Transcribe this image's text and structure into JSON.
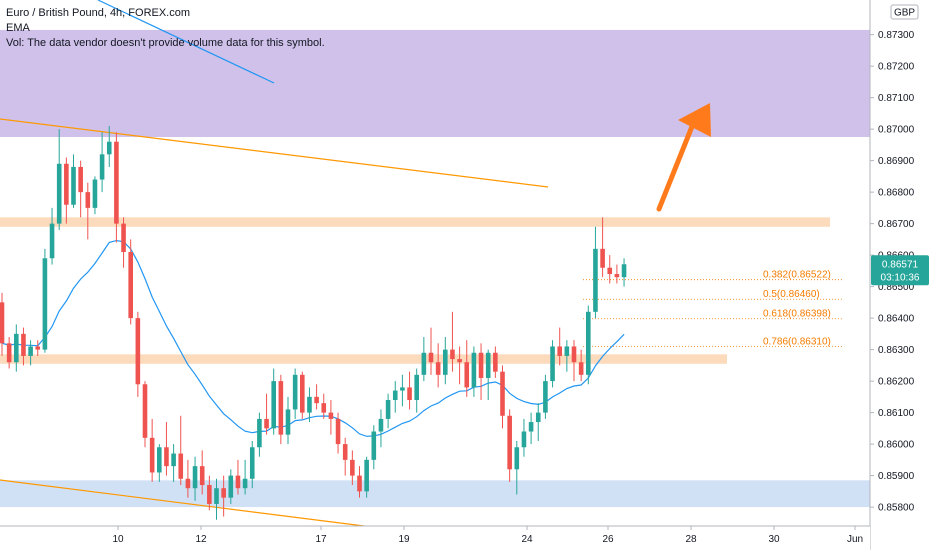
{
  "legend": {
    "symbol_line": "Euro / British Pound, 4h, FOREX.com",
    "ema_label": "EMA",
    "vol_line": "Vol: The data vendor doesn't provide volume data for this symbol."
  },
  "currency": "GBP",
  "price_badge": {
    "price": "0.86571",
    "countdown": "03:10:36",
    "color": "#26a69a"
  },
  "chart_data": {
    "type": "candlestick",
    "symbol": "Euro / British Pound",
    "interval": "4h",
    "source": "FOREX.com",
    "ylim": [
      0.8574,
      0.8741
    ],
    "y_ticks": [
      "0.87300",
      "0.87200",
      "0.87100",
      "0.87000",
      "0.86900",
      "0.86800",
      "0.86700",
      "0.86600",
      "0.86500",
      "0.86400",
      "0.86300",
      "0.86200",
      "0.86100",
      "0.86000",
      "0.85900",
      "0.85800"
    ],
    "x_ticks": [
      "10",
      "12",
      "17",
      "19",
      "24",
      "26",
      "28",
      "30",
      "Jun"
    ],
    "colors": {
      "up": "#26a69a",
      "down": "#ef5350",
      "ema": "#2196f3"
    },
    "zones": [
      {
        "name": "resistance-zone-purple",
        "y_top": 0.87315,
        "y_bottom": 0.86975,
        "color": "#c7b6e6"
      },
      {
        "name": "resistance-zone-orange",
        "y_top": 0.8672,
        "y_bottom": 0.8669,
        "color": "#fbd4b0"
      },
      {
        "name": "support-zone-orange",
        "y_top": 0.86285,
        "y_bottom": 0.86255,
        "color": "#fbd4b0"
      },
      {
        "name": "support-zone-blue",
        "y_top": 0.85885,
        "y_bottom": 0.858,
        "color": "#c8dcf4"
      }
    ],
    "fibonacci": [
      {
        "label": "0.382(0.86522)",
        "value": 0.86522
      },
      {
        "label": "0.5(0.86460)",
        "value": 0.8646
      },
      {
        "label": "0.618(0.86398)",
        "value": 0.86398
      },
      {
        "label": "0.786(0.86310)",
        "value": 0.8631
      }
    ],
    "candles": [
      [
        0.8645,
        0.8648,
        0.8628,
        0.8632
      ],
      [
        0.8632,
        0.8634,
        0.8624,
        0.8626
      ],
      [
        0.8626,
        0.8638,
        0.8623,
        0.8635
      ],
      [
        0.8635,
        0.8637,
        0.8625,
        0.8628
      ],
      [
        0.8628,
        0.8633,
        0.8625,
        0.8631
      ],
      [
        0.8631,
        0.8633,
        0.8628,
        0.863
      ],
      [
        0.863,
        0.8662,
        0.8629,
        0.8659
      ],
      [
        0.8659,
        0.8675,
        0.8657,
        0.867
      ],
      [
        0.867,
        0.87,
        0.8668,
        0.8689
      ],
      [
        0.8689,
        0.8691,
        0.867,
        0.8676
      ],
      [
        0.8676,
        0.8692,
        0.8675,
        0.8688
      ],
      [
        0.8688,
        0.869,
        0.8672,
        0.868
      ],
      [
        0.868,
        0.8683,
        0.8665,
        0.8675
      ],
      [
        0.8675,
        0.8685,
        0.8673,
        0.8684
      ],
      [
        0.8684,
        0.8699,
        0.868,
        0.8692
      ],
      [
        0.8692,
        0.8701,
        0.8688,
        0.8696
      ],
      [
        0.8696,
        0.8699,
        0.8664,
        0.867
      ],
      [
        0.867,
        0.8672,
        0.8656,
        0.8661
      ],
      [
        0.8661,
        0.8665,
        0.8638,
        0.864
      ],
      [
        0.864,
        0.8642,
        0.8615,
        0.8619
      ],
      [
        0.8619,
        0.862,
        0.8599,
        0.8602
      ],
      [
        0.8602,
        0.8608,
        0.8588,
        0.8591
      ],
      [
        0.8591,
        0.86,
        0.8588,
        0.8599
      ],
      [
        0.8599,
        0.8607,
        0.859,
        0.8593
      ],
      [
        0.8593,
        0.86,
        0.8588,
        0.8597
      ],
      [
        0.8597,
        0.8609,
        0.8587,
        0.8589
      ],
      [
        0.8589,
        0.8595,
        0.8583,
        0.8586
      ],
      [
        0.8586,
        0.8596,
        0.8582,
        0.8593
      ],
      [
        0.8593,
        0.8598,
        0.8584,
        0.8587
      ],
      [
        0.8587,
        0.859,
        0.8579,
        0.8581
      ],
      [
        0.8581,
        0.8589,
        0.8576,
        0.8586
      ],
      [
        0.8586,
        0.859,
        0.8577,
        0.8583
      ],
      [
        0.8583,
        0.8592,
        0.8581,
        0.859
      ],
      [
        0.859,
        0.8595,
        0.8584,
        0.8586
      ],
      [
        0.8586,
        0.8595,
        0.8584,
        0.8589
      ],
      [
        0.8589,
        0.8601,
        0.8586,
        0.8599
      ],
      [
        0.8599,
        0.861,
        0.8596,
        0.8608
      ],
      [
        0.8608,
        0.8616,
        0.8603,
        0.8605
      ],
      [
        0.8605,
        0.8624,
        0.8603,
        0.862
      ],
      [
        0.862,
        0.8622,
        0.86,
        0.8603
      ],
      [
        0.8603,
        0.8615,
        0.86,
        0.8611
      ],
      [
        0.8611,
        0.8624,
        0.8608,
        0.8622
      ],
      [
        0.8622,
        0.8623,
        0.8608,
        0.861
      ],
      [
        0.861,
        0.8618,
        0.8607,
        0.8615
      ],
      [
        0.8615,
        0.8619,
        0.8611,
        0.8613
      ],
      [
        0.8613,
        0.8616,
        0.8608,
        0.861
      ],
      [
        0.861,
        0.8614,
        0.8603,
        0.8608
      ],
      [
        0.8608,
        0.861,
        0.8597,
        0.86
      ],
      [
        0.86,
        0.8602,
        0.859,
        0.8595
      ],
      [
        0.8595,
        0.8598,
        0.8587,
        0.859
      ],
      [
        0.859,
        0.8593,
        0.8583,
        0.8585
      ],
      [
        0.8585,
        0.8596,
        0.8583,
        0.8595
      ],
      [
        0.8595,
        0.8606,
        0.8592,
        0.8604
      ],
      [
        0.8604,
        0.8611,
        0.8599,
        0.8608
      ],
      [
        0.8608,
        0.8616,
        0.8605,
        0.8614
      ],
      [
        0.8614,
        0.862,
        0.861,
        0.8617
      ],
      [
        0.8617,
        0.8622,
        0.8612,
        0.8618
      ],
      [
        0.8618,
        0.8623,
        0.8611,
        0.8614
      ],
      [
        0.8614,
        0.8624,
        0.861,
        0.8622
      ],
      [
        0.8622,
        0.8634,
        0.862,
        0.8629
      ],
      [
        0.8629,
        0.8637,
        0.8622,
        0.8626
      ],
      [
        0.8626,
        0.8632,
        0.8618,
        0.8622
      ],
      [
        0.8622,
        0.8634,
        0.8619,
        0.863
      ],
      [
        0.863,
        0.8642,
        0.8623,
        0.8627
      ],
      [
        0.8627,
        0.8631,
        0.8619,
        0.8626
      ],
      [
        0.8626,
        0.8633,
        0.8615,
        0.8618
      ],
      [
        0.8618,
        0.8631,
        0.8615,
        0.8629
      ],
      [
        0.8629,
        0.8632,
        0.8614,
        0.8621
      ],
      [
        0.8621,
        0.863,
        0.8614,
        0.8629
      ],
      [
        0.8629,
        0.8631,
        0.8621,
        0.8623
      ],
      [
        0.8623,
        0.8625,
        0.8605,
        0.8609
      ],
      [
        0.8609,
        0.8611,
        0.8588,
        0.8592
      ],
      [
        0.8592,
        0.8601,
        0.8584,
        0.8599
      ],
      [
        0.8599,
        0.8608,
        0.8596,
        0.8604
      ],
      [
        0.8604,
        0.861,
        0.86,
        0.8607
      ],
      [
        0.8607,
        0.8613,
        0.8601,
        0.861
      ],
      [
        0.861,
        0.8622,
        0.8608,
        0.862
      ],
      [
        0.862,
        0.8633,
        0.8618,
        0.8631
      ],
      [
        0.8631,
        0.8637,
        0.8625,
        0.8628
      ],
      [
        0.8628,
        0.8633,
        0.8623,
        0.8631
      ],
      [
        0.8631,
        0.8633,
        0.862,
        0.8626
      ],
      [
        0.8626,
        0.863,
        0.862,
        0.8622
      ],
      [
        0.8622,
        0.8644,
        0.8619,
        0.8642
      ],
      [
        0.8642,
        0.8669,
        0.864,
        0.8662
      ],
      [
        0.8662,
        0.8672,
        0.8653,
        0.8656
      ],
      [
        0.8656,
        0.866,
        0.8651,
        0.8654
      ],
      [
        0.8654,
        0.8657,
        0.8651,
        0.8653
      ],
      [
        0.8653,
        0.8659,
        0.865,
        0.86571
      ]
    ]
  }
}
